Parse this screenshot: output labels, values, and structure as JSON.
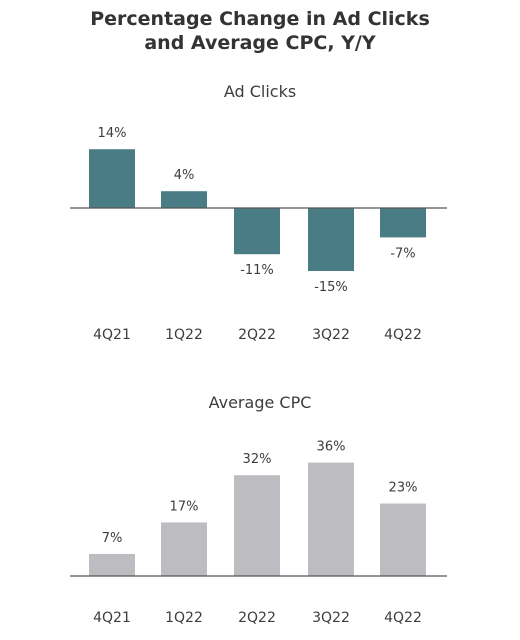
{
  "figure": {
    "title_line_1": "Percentage Change in Ad Clicks",
    "title_line_2": "and Average CPC, Y/Y"
  },
  "chart_data": [
    {
      "type": "bar",
      "title": "Ad Clicks",
      "categories": [
        "4Q21",
        "1Q22",
        "2Q22",
        "3Q22",
        "4Q22"
      ],
      "values": [
        14,
        4,
        -11,
        -15,
        -7
      ],
      "value_labels": [
        "14%",
        "4%",
        "-11%",
        "-15%",
        "-7%"
      ],
      "unit": "%",
      "ylim": [
        -15,
        14
      ],
      "bar_color": "#4a7c85",
      "grid": false,
      "legend": "none"
    },
    {
      "type": "bar",
      "title": "Average CPC",
      "categories": [
        "4Q21",
        "1Q22",
        "2Q22",
        "3Q22",
        "4Q22"
      ],
      "values": [
        7,
        17,
        32,
        36,
        23
      ],
      "value_labels": [
        "7%",
        "17%",
        "32%",
        "36%",
        "23%"
      ],
      "unit": "%",
      "ylim": [
        0,
        36
      ],
      "bar_color": "#bdbcc1",
      "grid": false,
      "legend": "none"
    }
  ]
}
